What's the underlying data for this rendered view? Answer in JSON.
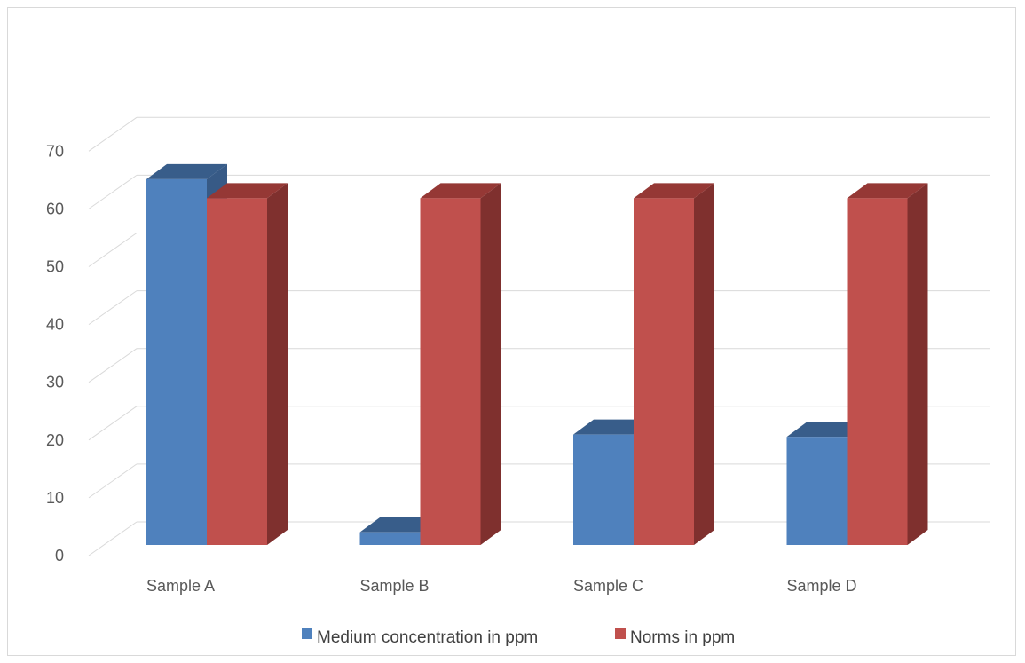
{
  "chart_data": {
    "type": "bar",
    "style": "3d-clustered-column",
    "categories": [
      "Sample A",
      "Sample B",
      "Sample C",
      "Sample D"
    ],
    "series": [
      {
        "name": "Medium concentration in ppm",
        "values": [
          63.3,
          2.2,
          19.1,
          18.7
        ],
        "color": "#4f81bd",
        "top": "#385d8a",
        "side": "#375a86"
      },
      {
        "name": "Norms in ppm",
        "values": [
          60,
          60,
          60,
          60
        ],
        "color": "#c0504d",
        "top": "#953835",
        "side": "#7f302e"
      }
    ],
    "ylim": [
      0,
      70
    ],
    "yticks": [
      "0",
      "10",
      "20",
      "30",
      "40",
      "50",
      "60",
      "70"
    ],
    "title": "",
    "xlabel": "",
    "ylabel": "",
    "grid": true,
    "legend_position": "bottom"
  }
}
